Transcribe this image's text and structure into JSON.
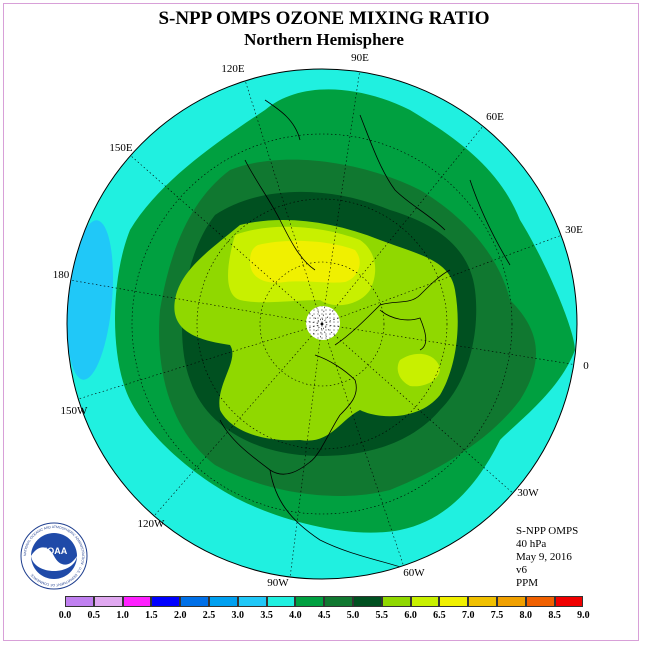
{
  "title": "S-NPP OMPS OZONE MIXING RATIO",
  "subtitle": "Northern Hemisphere",
  "longitude_labels": [
    "90E",
    "60E",
    "30E",
    "0",
    "30W",
    "60W",
    "90W",
    "120W",
    "150W",
    "180",
    "150E",
    "120E"
  ],
  "info": {
    "instrument": "S-NPP OMPS",
    "level": "40 hPa",
    "date": "May 9, 2016",
    "version": "v6",
    "units": "PPM"
  },
  "colorbar": {
    "ticks": [
      "0.0",
      "0.5",
      "1.0",
      "1.5",
      "2.0",
      "2.5",
      "3.0",
      "3.5",
      "4.0",
      "4.5",
      "5.0",
      "5.5",
      "6.0",
      "6.5",
      "7.0",
      "7.5",
      "8.0",
      "8.5",
      "9.0"
    ],
    "colors": [
      "#c080f0",
      "#e0a8f0",
      "#ff20ff",
      "#0000ff",
      "#0070e8",
      "#00a0f0",
      "#20c8f8",
      "#20f0e0",
      "#00a040",
      "#107830",
      "#005020",
      "#90d800",
      "#c8f000",
      "#f0f000",
      "#f0c000",
      "#f0a000",
      "#f06000",
      "#f00000",
      "#905030"
    ]
  },
  "logo": {
    "text": "NOAA",
    "ring_text": "NATIONAL OCEANIC AND ATMOSPHERIC ADMINISTRATION · U.S. DEPARTMENT OF COMMERCE"
  },
  "colors": {
    "band_3_5_4_0": "#20f0e0",
    "band_3_0_3_5": "#20c8f8",
    "band_4_0_4_5": "#00a040",
    "band_4_5_5_0": "#107830",
    "band_5_0_5_5": "#005020",
    "band_5_5_6_0": "#90d800",
    "band_6_0_6_5": "#c8f000",
    "band_6_5_7_0": "#f0f000",
    "polar_night": "#ffffff"
  }
}
